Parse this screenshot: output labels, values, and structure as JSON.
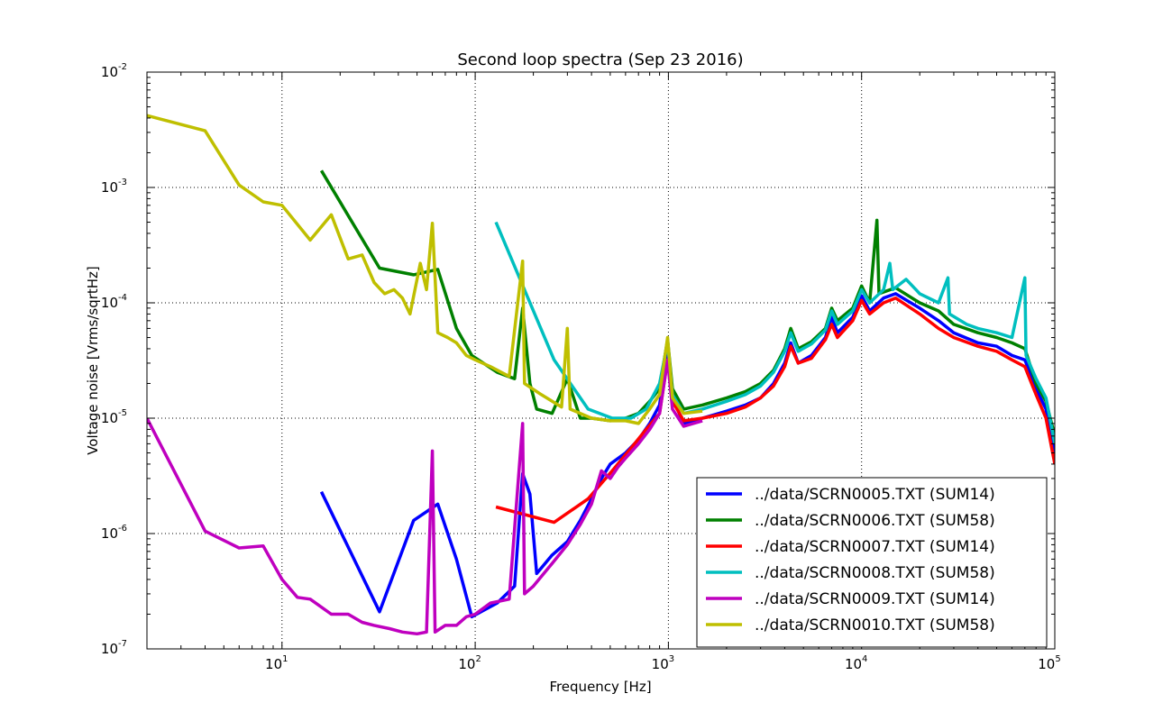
{
  "chart_data": {
    "type": "line",
    "title": "Second loop spectra (Sep 23 2016)",
    "xlabel": "Frequency [Hz]",
    "ylabel": "Voltage noise [Vrms/sqrtHz]",
    "xscale": "log",
    "yscale": "log",
    "xlim": [
      2,
      100000
    ],
    "ylim": [
      1e-07,
      0.01
    ],
    "grid": true,
    "legend_position": "bottom-right",
    "x_ticks": [
      {
        "base": "10",
        "exp": "1",
        "value": 10
      },
      {
        "base": "10",
        "exp": "2",
        "value": 100
      },
      {
        "base": "10",
        "exp": "3",
        "value": 1000
      },
      {
        "base": "10",
        "exp": "4",
        "value": 10000
      },
      {
        "base": "10",
        "exp": "5",
        "value": 100000
      }
    ],
    "y_ticks": [
      {
        "base": "10",
        "exp": "-7",
        "value": 1e-07
      },
      {
        "base": "10",
        "exp": "-6",
        "value": 1e-06
      },
      {
        "base": "10",
        "exp": "-5",
        "value": 1e-05
      },
      {
        "base": "10",
        "exp": "-4",
        "value": 0.0001
      },
      {
        "base": "10",
        "exp": "-3",
        "value": 0.001
      },
      {
        "base": "10",
        "exp": "-2",
        "value": 0.01
      }
    ],
    "series": [
      {
        "name": "../data/SCRN0005.TXT (SUM14)",
        "color": "#0000ff",
        "points": [
          [
            16,
            2.3e-06
          ],
          [
            32,
            2.1e-07
          ],
          [
            48,
            1.3e-06
          ],
          [
            64,
            1.8e-06
          ],
          [
            80,
            6e-07
          ],
          [
            96,
            1.9e-07
          ],
          [
            130,
            2.5e-07
          ],
          [
            160,
            3.5e-07
          ],
          [
            176,
            3.3e-06
          ],
          [
            192,
            2.2e-06
          ],
          [
            208,
            4.5e-07
          ],
          [
            250,
            6.5e-07
          ],
          [
            300,
            8.5e-07
          ],
          [
            350,
            1.3e-06
          ],
          [
            400,
            2e-06
          ],
          [
            450,
            3e-06
          ],
          [
            500,
            4e-06
          ],
          [
            600,
            5e-06
          ],
          [
            700,
            6.5e-06
          ],
          [
            800,
            9e-06
          ],
          [
            900,
            1.3e-05
          ],
          [
            990,
            4e-05
          ],
          [
            1050,
            1.5e-05
          ],
          [
            1200,
            9e-06
          ],
          [
            1500,
            1e-05
          ],
          [
            2000,
            1.15e-05
          ],
          [
            2500,
            1.3e-05
          ],
          [
            3000,
            1.5e-05
          ],
          [
            3500,
            2e-05
          ],
          [
            4000,
            3e-05
          ],
          [
            4300,
            4.5e-05
          ],
          [
            4700,
            3e-05
          ],
          [
            5500,
            3.5e-05
          ],
          [
            6500,
            5e-05
          ],
          [
            7000,
            7.5e-05
          ],
          [
            7500,
            5.5e-05
          ],
          [
            9000,
            7.5e-05
          ],
          [
            10000,
            0.000115
          ],
          [
            11000,
            8.5e-05
          ],
          [
            13000,
            0.00011
          ],
          [
            15000,
            0.00012
          ],
          [
            20000,
            9e-05
          ],
          [
            25000,
            7e-05
          ],
          [
            30000,
            5.5e-05
          ],
          [
            40000,
            4.5e-05
          ],
          [
            50000,
            4.2e-05
          ],
          [
            60000,
            3.5e-05
          ],
          [
            70000,
            3.2e-05
          ],
          [
            80000,
            1.8e-05
          ],
          [
            90000,
            1.2e-05
          ],
          [
            100000,
            5e-06
          ]
        ]
      },
      {
        "name": "../data/SCRN0006.TXT (SUM58)",
        "color": "#008000",
        "points": [
          [
            16,
            0.0014
          ],
          [
            32,
            0.0002
          ],
          [
            48,
            0.000175
          ],
          [
            64,
            0.000195
          ],
          [
            80,
            6e-05
          ],
          [
            96,
            3.5e-05
          ],
          [
            130,
            2.5e-05
          ],
          [
            160,
            2.2e-05
          ],
          [
            176,
            9e-05
          ],
          [
            192,
            2e-05
          ],
          [
            208,
            1.2e-05
          ],
          [
            250,
            1.1e-05
          ],
          [
            300,
            2.2e-05
          ],
          [
            350,
            1e-05
          ],
          [
            400,
            1e-05
          ],
          [
            500,
            9.5e-06
          ],
          [
            600,
            1e-05
          ],
          [
            700,
            1.1e-05
          ],
          [
            800,
            1.4e-05
          ],
          [
            900,
            1.8e-05
          ],
          [
            990,
            4.8e-05
          ],
          [
            1050,
            1.8e-05
          ],
          [
            1200,
            1.2e-05
          ],
          [
            1500,
            1.3e-05
          ],
          [
            2000,
            1.5e-05
          ],
          [
            2500,
            1.7e-05
          ],
          [
            3000,
            2e-05
          ],
          [
            3500,
            2.6e-05
          ],
          [
            4000,
            4e-05
          ],
          [
            4300,
            6e-05
          ],
          [
            4700,
            4e-05
          ],
          [
            5500,
            4.6e-05
          ],
          [
            6500,
            6e-05
          ],
          [
            7000,
            9e-05
          ],
          [
            7500,
            7e-05
          ],
          [
            9000,
            9e-05
          ],
          [
            10000,
            0.00014
          ],
          [
            11000,
            0.0001
          ],
          [
            12000,
            0.00052
          ],
          [
            12300,
            0.00012
          ],
          [
            15000,
            0.000135
          ],
          [
            20000,
            0.0001
          ],
          [
            25000,
            8.5e-05
          ],
          [
            30000,
            6.5e-05
          ],
          [
            40000,
            5.5e-05
          ],
          [
            50000,
            5e-05
          ],
          [
            60000,
            4.5e-05
          ],
          [
            70000,
            4e-05
          ],
          [
            80000,
            2e-05
          ],
          [
            90000,
            1.4e-05
          ],
          [
            100000,
            7e-06
          ]
        ]
      },
      {
        "name": "../data/SCRN0007.TXT (SUM14)",
        "color": "#ff0000",
        "points": [
          [
            128,
            1.7e-06
          ],
          [
            256,
            1.25e-06
          ],
          [
            384,
            2e-06
          ],
          [
            512,
            3.5e-06
          ],
          [
            640,
            5.5e-06
          ],
          [
            768,
            8e-06
          ],
          [
            900,
            1.1e-05
          ],
          [
            990,
            3.2e-05
          ],
          [
            1050,
            1.4e-05
          ],
          [
            1200,
            9.5e-06
          ],
          [
            1500,
            1e-05
          ],
          [
            2000,
            1.1e-05
          ],
          [
            2500,
            1.25e-05
          ],
          [
            3000,
            1.5e-05
          ],
          [
            3500,
            1.9e-05
          ],
          [
            4000,
            2.8e-05
          ],
          [
            4300,
            4.2e-05
          ],
          [
            4700,
            3e-05
          ],
          [
            5500,
            3.3e-05
          ],
          [
            6500,
            4.8e-05
          ],
          [
            7000,
            6.5e-05
          ],
          [
            7500,
            5e-05
          ],
          [
            9000,
            7e-05
          ],
          [
            10000,
            0.000105
          ],
          [
            11000,
            8e-05
          ],
          [
            13000,
            0.0001
          ],
          [
            15000,
            0.00011
          ],
          [
            20000,
            8e-05
          ],
          [
            25000,
            6e-05
          ],
          [
            30000,
            5e-05
          ],
          [
            40000,
            4.2e-05
          ],
          [
            50000,
            3.8e-05
          ],
          [
            60000,
            3.2e-05
          ],
          [
            70000,
            2.8e-05
          ],
          [
            80000,
            1.6e-05
          ],
          [
            90000,
            1e-05
          ],
          [
            100000,
            4e-06
          ]
        ]
      },
      {
        "name": "../data/SCRN0008.TXT (SUM58)",
        "color": "#00bfbf",
        "points": [
          [
            128,
            0.0005
          ],
          [
            256,
            3.2e-05
          ],
          [
            384,
            1.2e-05
          ],
          [
            512,
            1e-05
          ],
          [
            640,
            1e-05
          ],
          [
            768,
            1.2e-05
          ],
          [
            900,
            2e-05
          ],
          [
            990,
            4.5e-05
          ],
          [
            1050,
            1.6e-05
          ],
          [
            1200,
            1.1e-05
          ],
          [
            1500,
            1.2e-05
          ],
          [
            2000,
            1.4e-05
          ],
          [
            2500,
            1.6e-05
          ],
          [
            3000,
            1.9e-05
          ],
          [
            3500,
            2.5e-05
          ],
          [
            4000,
            3.8e-05
          ],
          [
            4300,
            5.5e-05
          ],
          [
            4700,
            3.8e-05
          ],
          [
            5500,
            4.4e-05
          ],
          [
            6500,
            5.8e-05
          ],
          [
            7000,
            8.5e-05
          ],
          [
            7500,
            6.5e-05
          ],
          [
            9000,
            8.5e-05
          ],
          [
            10000,
            0.00013
          ],
          [
            11000,
            0.0001
          ],
          [
            13000,
            0.00013
          ],
          [
            14000,
            0.00022
          ],
          [
            14500,
            0.00013
          ],
          [
            17000,
            0.00016
          ],
          [
            20000,
            0.00012
          ],
          [
            25000,
            0.0001
          ],
          [
            28000,
            0.000165
          ],
          [
            28500,
            8e-05
          ],
          [
            35000,
            6.5e-05
          ],
          [
            40000,
            6e-05
          ],
          [
            50000,
            5.5e-05
          ],
          [
            60000,
            5e-05
          ],
          [
            70000,
            0.000165
          ],
          [
            71000,
            3.5e-05
          ],
          [
            80000,
            2.2e-05
          ],
          [
            90000,
            1.5e-05
          ],
          [
            100000,
            6e-06
          ]
        ]
      },
      {
        "name": "../data/SCRN0009.TXT (SUM14)",
        "color": "#bf00bf",
        "points": [
          [
            2,
            1e-05
          ],
          [
            4,
            1.05e-06
          ],
          [
            6,
            7.5e-07
          ],
          [
            8,
            7.8e-07
          ],
          [
            10,
            4e-07
          ],
          [
            12,
            2.8e-07
          ],
          [
            14,
            2.7e-07
          ],
          [
            18,
            2e-07
          ],
          [
            22,
            2e-07
          ],
          [
            26,
            1.7e-07
          ],
          [
            30,
            1.6e-07
          ],
          [
            36,
            1.5e-07
          ],
          [
            42,
            1.4e-07
          ],
          [
            50,
            1.35e-07
          ],
          [
            56,
            1.4e-07
          ],
          [
            60,
            5.2e-06
          ],
          [
            62,
            1.4e-07
          ],
          [
            70,
            1.6e-07
          ],
          [
            80,
            1.6e-07
          ],
          [
            90,
            1.9e-07
          ],
          [
            100,
            2e-07
          ],
          [
            120,
            2.5e-07
          ],
          [
            150,
            2.7e-07
          ],
          [
            176,
            9e-06
          ],
          [
            180,
            3e-07
          ],
          [
            200,
            3.5e-07
          ],
          [
            250,
            5.5e-07
          ],
          [
            300,
            8e-07
          ],
          [
            350,
            1.2e-06
          ],
          [
            400,
            1.8e-06
          ],
          [
            450,
            3.5e-06
          ],
          [
            500,
            3e-06
          ],
          [
            550,
            3.8e-06
          ],
          [
            600,
            4.5e-06
          ],
          [
            700,
            6e-06
          ],
          [
            800,
            8e-06
          ],
          [
            900,
            1.1e-05
          ],
          [
            990,
            3.2e-05
          ],
          [
            1050,
            1.2e-05
          ],
          [
            1200,
            8.5e-06
          ],
          [
            1500,
            9.5e-06
          ]
        ]
      },
      {
        "name": "../data/SCRN0010.TXT (SUM58)",
        "color": "#bfbf00",
        "points": [
          [
            2,
            0.0042
          ],
          [
            4,
            0.0031
          ],
          [
            6,
            0.00105
          ],
          [
            8,
            0.00075
          ],
          [
            10,
            0.0007
          ],
          [
            14,
            0.00035
          ],
          [
            18,
            0.00058
          ],
          [
            22,
            0.00024
          ],
          [
            26,
            0.00026
          ],
          [
            30,
            0.00015
          ],
          [
            34,
            0.00012
          ],
          [
            38,
            0.00013
          ],
          [
            42,
            0.00011
          ],
          [
            46,
            8e-05
          ],
          [
            52,
            0.00022
          ],
          [
            56,
            0.00013
          ],
          [
            60,
            0.00049
          ],
          [
            64,
            5.5e-05
          ],
          [
            72,
            5e-05
          ],
          [
            80,
            4.5e-05
          ],
          [
            90,
            3.5e-05
          ],
          [
            100,
            3.2e-05
          ],
          [
            120,
            2.8e-05
          ],
          [
            150,
            2.3e-05
          ],
          [
            176,
            0.00023
          ],
          [
            180,
            2e-05
          ],
          [
            220,
            1.6e-05
          ],
          [
            280,
            1.25e-05
          ],
          [
            300,
            6e-05
          ],
          [
            310,
            1.2e-05
          ],
          [
            400,
            1e-05
          ],
          [
            500,
            9.5e-06
          ],
          [
            600,
            9.5e-06
          ],
          [
            700,
            9e-06
          ],
          [
            800,
            1.2e-05
          ],
          [
            900,
            1.6e-05
          ],
          [
            990,
            5e-05
          ],
          [
            1050,
            1.5e-05
          ],
          [
            1200,
            1.1e-05
          ],
          [
            1500,
            1.15e-05
          ]
        ]
      }
    ]
  }
}
